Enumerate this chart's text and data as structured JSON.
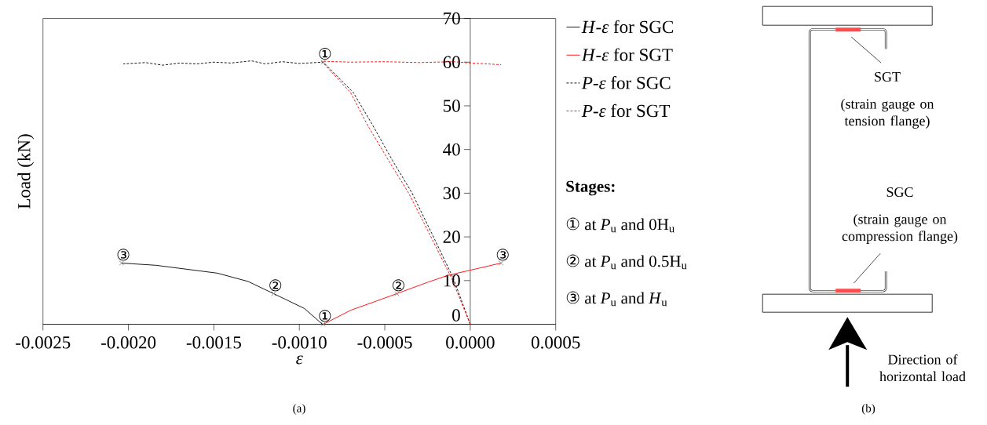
{
  "chart_data": [
    {
      "type": "line",
      "xlabel": "ε",
      "ylabel": "Load (kN)",
      "xlim": [
        -0.0025,
        0.0005
      ],
      "ylim": [
        0,
        70
      ],
      "xticks": [
        {
          "value": -0.0025,
          "label": "-0.0025"
        },
        {
          "value": -0.002,
          "label": "-0.0020"
        },
        {
          "value": -0.0015,
          "label": "-0.0015"
        },
        {
          "value": -0.001,
          "label": "-0.0010"
        },
        {
          "value": -0.0005,
          "label": "-0.0005"
        },
        {
          "value": 0,
          "label": "0.0000"
        },
        {
          "value": 0.0005,
          "label": "0.0005"
        }
      ],
      "yticks": [
        0,
        10,
        20,
        30,
        40,
        50,
        60,
        70
      ],
      "legend": "right",
      "series": [
        {
          "name": "*H*-*ε*  for SGC",
          "color": "#000000",
          "line_style": "solid",
          "x": [
            0,
            -0.0004,
            -0.000865,
            -0.00097,
            -0.00115,
            -0.0013,
            -0.00148,
            -0.00184,
            -0.00204
          ],
          "values": [
            0,
            0,
            0,
            3.6,
            7.0,
            9.8,
            11.7,
            13.5,
            14.0
          ]
        },
        {
          "name": "*H*-*ε*  for SGT",
          "color": "#ff0000",
          "line_style": "solid",
          "x": [
            0,
            -0.00086,
            -0.0007,
            -0.00055,
            -0.00043,
            -0.00025,
            -0.00013,
            0.00018
          ],
          "values": [
            0,
            0,
            3.2,
            5.3,
            7.0,
            9.6,
            11.2,
            14.0
          ]
        },
        {
          "name": "*P*-*ε*  for SGC",
          "color": "#000000",
          "line_style": "dashed",
          "x": [
            0,
            -0.0001,
            -0.000225,
            -0.00034,
            -0.000455,
            -0.00057,
            -0.000685,
            -0.00086,
            -0.001,
            -0.0011,
            -0.0012,
            -0.00128,
            -0.0014,
            -0.0015,
            -0.0016,
            -0.0017,
            -0.0018,
            -0.0019,
            -0.00203
          ],
          "values": [
            0,
            10.6,
            20.8,
            30,
            37.5,
            45.5,
            53.1,
            60,
            59.7,
            60.1,
            59.6,
            60.3,
            59.8,
            60.0,
            59.6,
            59.8,
            59.3,
            59.9,
            59.6
          ]
        },
        {
          "name": "*P*-*ε*  for SGT",
          "color": "#ff0000",
          "line_style": "dashed",
          "x": [
            0,
            -0.00011,
            -0.00024,
            -0.00036,
            -0.000478,
            -0.0006,
            -0.0007,
            -0.00087,
            -0.0007,
            -0.0005,
            -0.0003,
            -0.0001,
            0,
            0.0001,
            0.00018
          ],
          "values": [
            0,
            10.6,
            20.8,
            30,
            37.5,
            45.5,
            53,
            60.2,
            60.0,
            60.1,
            59.9,
            60.1,
            59.8,
            59.6,
            59.4
          ]
        },
        {
          "type": "scatter",
          "color": "#808080",
          "marker": "cross",
          "x": [
            -0.00086,
            -0.00086,
            -0.00115,
            -0.00043,
            -0.00204,
            0.00018
          ],
          "values": [
            60,
            0,
            7.0,
            7.0,
            14.0,
            14.0
          ]
        }
      ],
      "annotations": [
        {
          "text": "①",
          "x": -0.00086,
          "y": 60
        },
        {
          "text": "①",
          "x": -0.00086,
          "y": 0
        },
        {
          "text": "②",
          "x": -0.00115,
          "y": 7.0
        },
        {
          "text": "②",
          "x": -0.00043,
          "y": 7.0
        },
        {
          "text": "③",
          "x": -0.00204,
          "y": 14.0
        },
        {
          "text": "③",
          "x": 0.00018,
          "y": 14.0
        },
        "Stages:",
        "① at *P*$_{u}$ and 0H$_{u}$",
        "② at *P*$_{u}$ and 0.5H$_{u}$",
        "③ at *P*$_{u}$ and *H*$_{u}$",
        "(a)"
      ]
    },
    {
      "type": "other",
      "annotations": [
        "SGT",
        "(strain gauge on tension flange)",
        "SGC",
        "(strain gauge on compression flange)",
        "Direction of horizontal load",
        "(b)"
      ]
    }
  ]
}
